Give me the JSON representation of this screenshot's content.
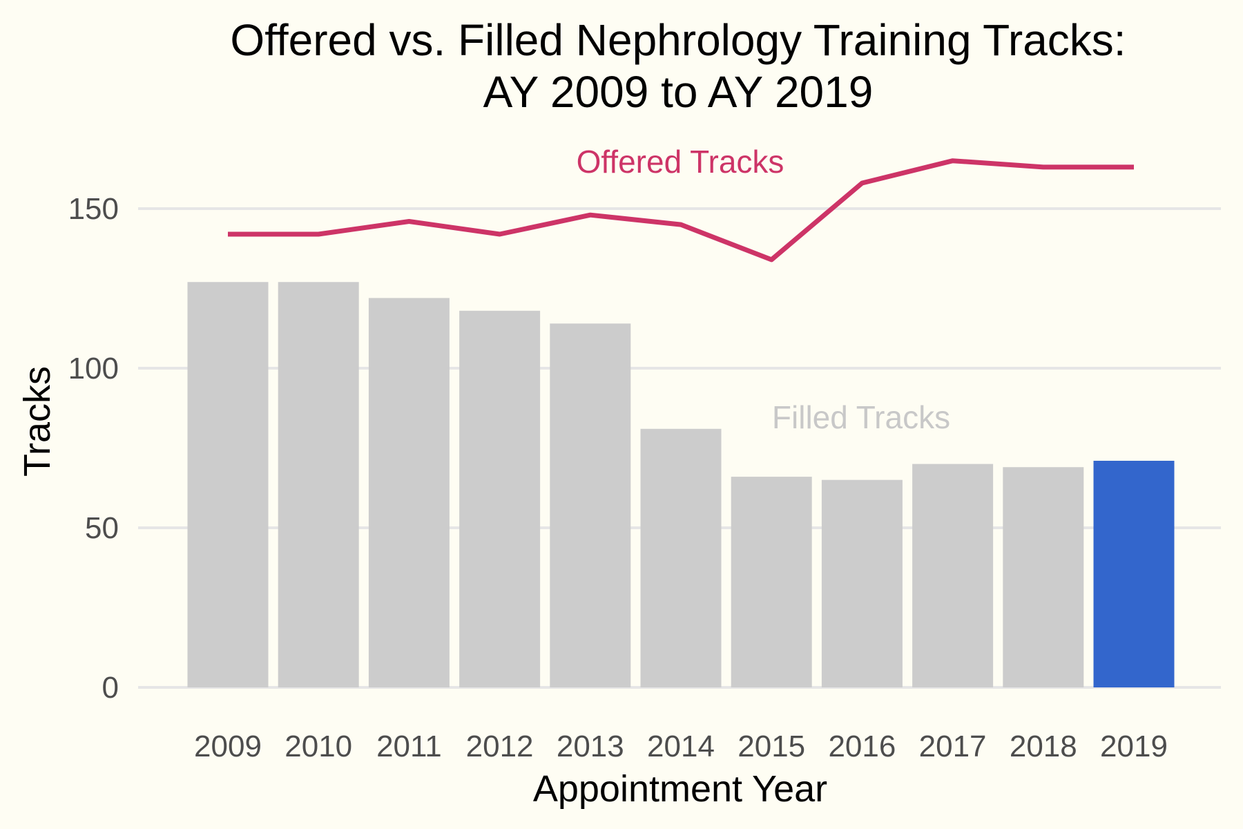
{
  "chart_data": {
    "type": "bar",
    "title_line1": "Offered vs. Filled Nephrology Training Tracks:",
    "title_line2": "AY 2009 to AY 2019",
    "xlabel": "Appointment Year",
    "ylabel": "Tracks",
    "ylim": [
      0,
      170
    ],
    "yticks": [
      0,
      50,
      100,
      150
    ],
    "grid": true,
    "categories": [
      "2009",
      "2010",
      "2011",
      "2012",
      "2013",
      "2014",
      "2015",
      "2016",
      "2017",
      "2018",
      "2019"
    ],
    "series": [
      {
        "name": "Filled Tracks",
        "type": "bar",
        "values": [
          127,
          127,
          122,
          118,
          114,
          81,
          66,
          65,
          70,
          69,
          71
        ],
        "color": "#cccccc",
        "highlight_color": "#3366cc",
        "highlight_category": "2019"
      },
      {
        "name": "Offered Tracks",
        "type": "line",
        "values": [
          142,
          142,
          146,
          142,
          148,
          145,
          134,
          158,
          165,
          163,
          163
        ],
        "color": "#cd3467"
      }
    ],
    "annotations": {
      "offered": "Offered Tracks",
      "filled": "Filled Tracks"
    }
  }
}
